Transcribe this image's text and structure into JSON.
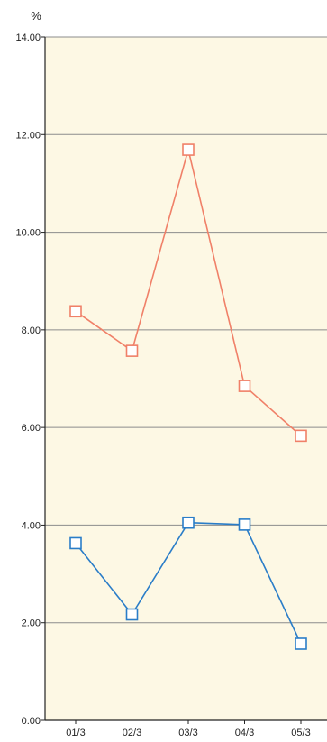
{
  "chart_data": {
    "type": "line",
    "unit_label": "%",
    "categories": [
      "01/3",
      "02/3",
      "03/3",
      "04/3",
      "05/3"
    ],
    "ylim": [
      0,
      14
    ],
    "y_ticks": [
      "0.00",
      "2.00",
      "4.00",
      "6.00",
      "8.00",
      "10.00",
      "12.00",
      "14.00"
    ],
    "grid": true,
    "plot_background": "#fdf8e4",
    "series": [
      {
        "color": "#f08068",
        "values": [
          8.38,
          7.57,
          11.69,
          6.85,
          5.83
        ]
      },
      {
        "color": "#2a7dc8",
        "values": [
          3.63,
          2.17,
          4.05,
          4.01,
          1.57
        ]
      }
    ]
  }
}
